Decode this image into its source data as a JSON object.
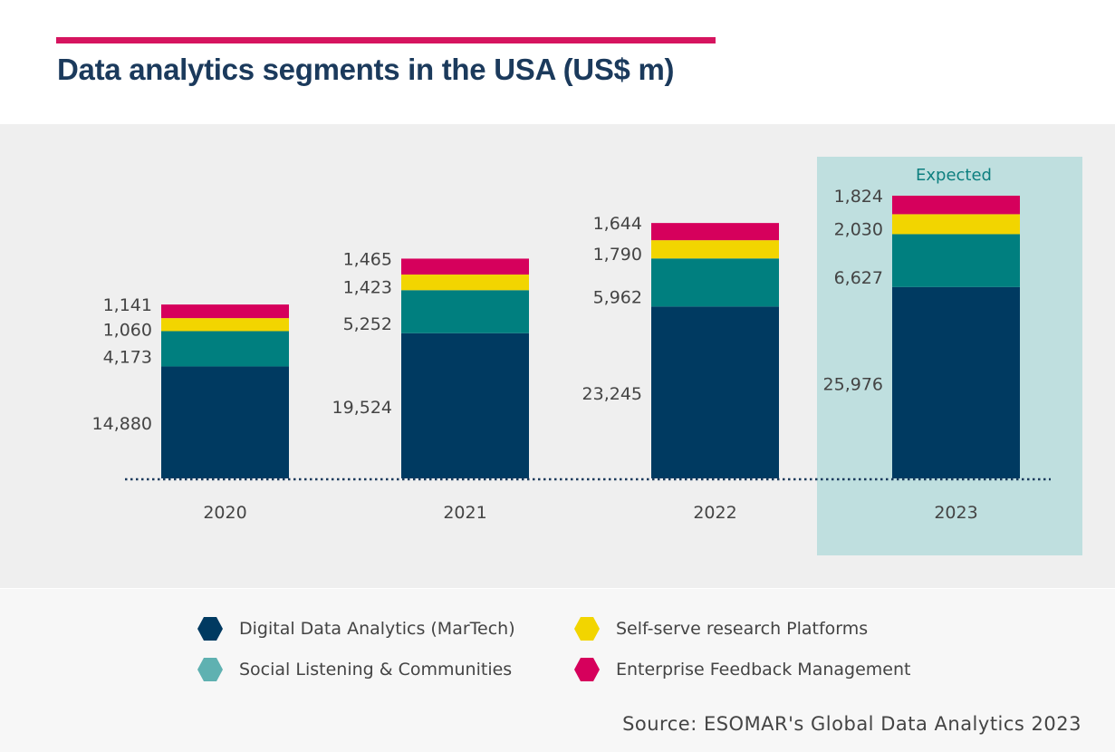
{
  "title": "Data analytics segments in the USA (US$ m)",
  "colors": {
    "accent": "#d6145f",
    "title": "#1b3a5c",
    "highlight": "#bfdfdf",
    "expected_text": "#0d7f7f"
  },
  "chart_data": {
    "type": "bar",
    "stacked": true,
    "categories": [
      "2020",
      "2021",
      "2022",
      "2023"
    ],
    "highlight": {
      "category": "2023",
      "label": "Expected"
    },
    "series": [
      {
        "name": "Digital Data Analytics (MarTech)",
        "color": "#003a61",
        "legend_color": "#003a61",
        "values": [
          14880,
          19524,
          23245,
          25976
        ]
      },
      {
        "name": "Social Listening & Communities",
        "color": "#007f7f",
        "legend_color": "#5fb1b1",
        "values": [
          4173,
          5252,
          5962,
          6627
        ]
      },
      {
        "name": "Self-serve research Platforms",
        "color": "#f2d500",
        "legend_color": "#f2d500",
        "values": [
          1060,
          1423,
          1790,
          2030
        ]
      },
      {
        "name": "Enterprise Feedback Management",
        "color": "#d6005c",
        "legend_color": "#d6005c",
        "values": [
          1141,
          1465,
          1644,
          1824
        ]
      }
    ],
    "data_labels": [
      [
        "14,880",
        "19,524",
        "23,245",
        "25,976"
      ],
      [
        "4,173",
        "5,252",
        "5,962",
        "6,627"
      ],
      [
        "1,060",
        "1,423",
        "1,790",
        "2,030"
      ],
      [
        "1,141",
        "1,465",
        "1,644",
        "1,824"
      ]
    ],
    "legend": "bottom",
    "grid": false
  },
  "source": "Source: ESOMAR's Global Data Analytics 2023"
}
